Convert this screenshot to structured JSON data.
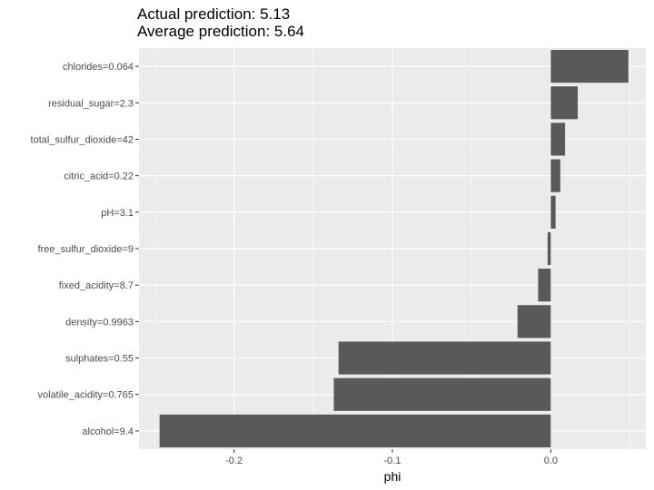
{
  "chart_data": {
    "type": "bar",
    "orientation": "horizontal",
    "title_lines": [
      "Actual prediction: 5.13",
      "Average prediction: 5.64"
    ],
    "xlabel": "phi",
    "ylabel": "",
    "categories": [
      "chlorides=0.064",
      "residual_sugar=2.3",
      "total_sulfur_dioxide=42",
      "citric_acid=0.22",
      "pH=3.1",
      "free_sulfur_dioxide=9",
      "fixed_acidity=8.7",
      "density=0.9963",
      "sulphates=0.55",
      "volatile_acidity=0.765",
      "alcohol=9.4"
    ],
    "values": [
      0.049,
      0.017,
      0.009,
      0.006,
      0.003,
      -0.002,
      -0.008,
      -0.021,
      -0.134,
      -0.137,
      -0.247
    ],
    "xlim": [
      -0.26,
      0.06
    ],
    "xticks": [
      -0.2,
      -0.1,
      0.0
    ],
    "xtick_labels": [
      "-0.2",
      "-0.1",
      "0.0"
    ],
    "grid": true,
    "colors": {
      "panel": "#ebebeb",
      "grid": "#ffffff",
      "bar": "#595959"
    }
  }
}
